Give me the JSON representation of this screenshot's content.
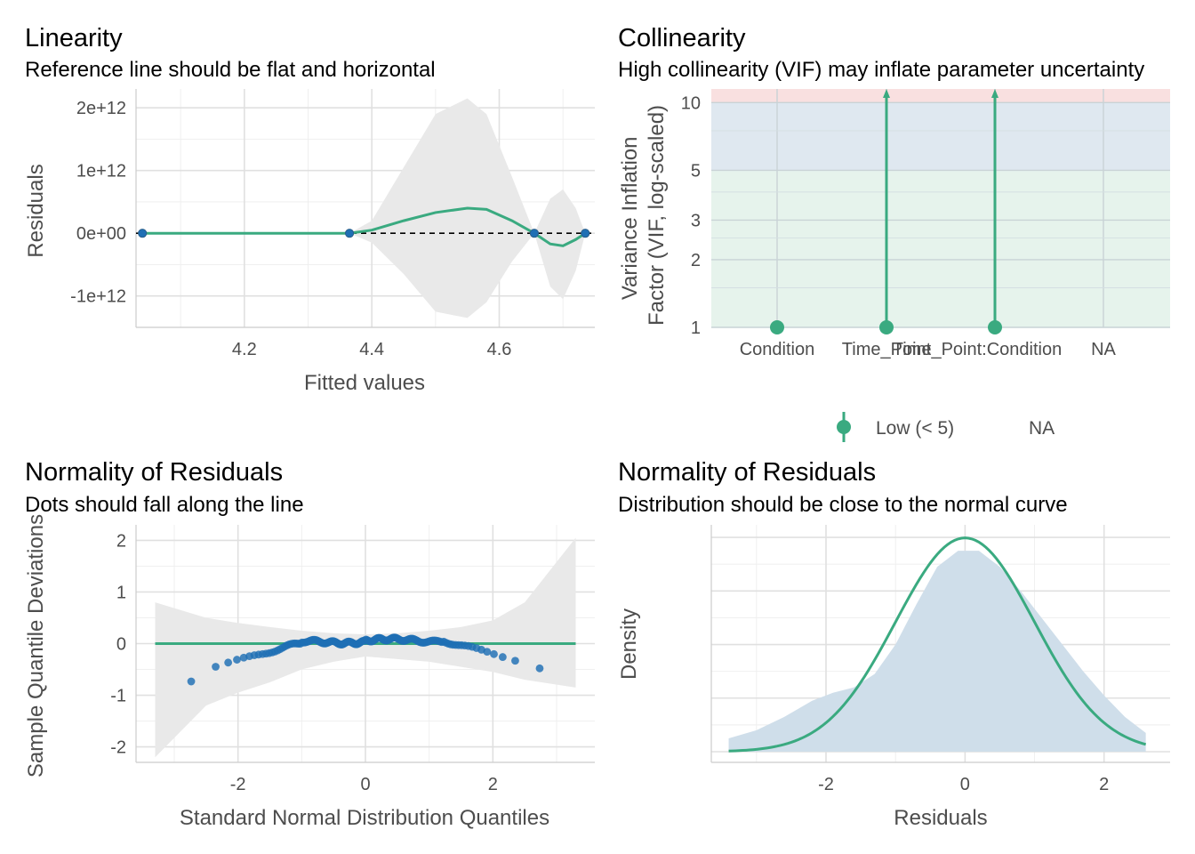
{
  "colors": {
    "accent_green": "#3aaa80",
    "point_blue": "#1f6fb4",
    "band_gray": "#e9e9e9",
    "zone_low": "#e6f3ec",
    "zone_moderate": "#dfe8f0",
    "zone_high": "#f9e0e0",
    "density_fill": "#cfdeea"
  },
  "chart_data": [
    {
      "id": "linearity",
      "type": "scatter",
      "title": "Linearity",
      "subtitle": "Reference line should be flat and horizontal",
      "xlabel": "Fitted values",
      "ylabel": "Residuals",
      "xlim": [
        4.03,
        4.75
      ],
      "ylim": [
        -1500000000000.0,
        2300000000000.0
      ],
      "x_ticks": [
        4.2,
        4.4,
        4.6
      ],
      "x_tick_labels": [
        "4.2",
        "4.4",
        "4.6"
      ],
      "y_ticks": [
        -1000000000000.0,
        0,
        1000000000000.0,
        2000000000000.0
      ],
      "y_tick_labels": [
        "-1e+12",
        "0e+00",
        "1e+12",
        "2e+12"
      ],
      "reference_line_y": 0,
      "points": [
        {
          "x": 4.04,
          "y": 0
        },
        {
          "x": 4.365,
          "y": 0
        },
        {
          "x": 4.655,
          "y": 0
        },
        {
          "x": 4.735,
          "y": 0
        }
      ],
      "smooth": {
        "x": [
          4.04,
          4.365,
          4.4,
          4.45,
          4.5,
          4.55,
          4.58,
          4.62,
          4.655,
          4.68,
          4.7,
          4.72,
          4.735
        ],
        "y": [
          0,
          0,
          50000000000.0,
          200000000000.0,
          330000000000.0,
          400000000000.0,
          380000000000.0,
          200000000000.0,
          0,
          -170000000000.0,
          -200000000000.0,
          -100000000000.0,
          0
        ],
        "upper": [
          0,
          0,
          200000000000.0,
          1050000000000.0,
          1900000000000.0,
          2150000000000.0,
          1900000000000.0,
          900000000000.0,
          0,
          550000000000.0,
          700000000000.0,
          400000000000.0,
          0
        ],
        "lower": [
          0,
          0,
          -150000000000.0,
          -650000000000.0,
          -1250000000000.0,
          -1350000000000.0,
          -1100000000000.0,
          -450000000000.0,
          0,
          -850000000000.0,
          -1050000000000.0,
          -600000000000.0,
          0
        ]
      }
    },
    {
      "id": "collinearity",
      "type": "scatter",
      "title": "Collinearity",
      "subtitle": "High collinearity (VIF) may inflate parameter uncertainty",
      "xlabel": "",
      "ylabel": "Variance Inflation\nFactor (VIF, log-scaled)",
      "y_scale": "log",
      "ylim": [
        1,
        11.5
      ],
      "y_ticks": [
        1,
        2,
        3,
        5,
        10
      ],
      "y_tick_labels": [
        "1",
        "2",
        "3",
        "5",
        "10"
      ],
      "categories": [
        "Condition",
        "Time_Point",
        "Time_Point:Condition",
        "NA"
      ],
      "vif": [
        1,
        1,
        1,
        null
      ],
      "ci_upper_off_scale": [
        false,
        true,
        true,
        false
      ],
      "zones": [
        {
          "from": 1,
          "to": 5,
          "color": "#e6f3ec"
        },
        {
          "from": 5,
          "to": 10,
          "color": "#dfe8f0"
        },
        {
          "from": 10,
          "to": 11.5,
          "color": "#f9e0e0"
        }
      ],
      "legend": [
        "Low (< 5)",
        "NA"
      ],
      "legend_position": "bottom"
    },
    {
      "id": "qq",
      "type": "scatter",
      "title": "Normality of Residuals",
      "subtitle": "Dots should fall along the line",
      "xlabel": "Standard Normal Distribution Quantiles",
      "ylabel": "Sample Quantile Deviations",
      "xlim": [
        -3.6,
        3.6
      ],
      "ylim": [
        -2.3,
        2.3
      ],
      "x_ticks": [
        -2,
        0,
        2
      ],
      "x_tick_labels": [
        "-2",
        "0",
        "2"
      ],
      "y_ticks": [
        -2,
        -1,
        0,
        1,
        2
      ],
      "y_tick_labels": [
        "-2",
        "-1",
        "0",
        "1",
        "2"
      ],
      "reference_line_y": 0,
      "band": {
        "x": [
          -3.3,
          -2.5,
          -2.0,
          -1.5,
          -1.0,
          -0.5,
          0,
          0.5,
          1.0,
          1.5,
          2.0,
          2.5,
          3.3
        ],
        "upper": [
          0.8,
          0.5,
          0.4,
          0.32,
          0.25,
          0.2,
          0.18,
          0.2,
          0.25,
          0.32,
          0.45,
          0.8,
          2.05
        ],
        "lower": [
          -2.2,
          -1.2,
          -0.95,
          -0.75,
          -0.5,
          -0.35,
          -0.25,
          -0.3,
          -0.35,
          -0.45,
          -0.55,
          -0.7,
          -0.85
        ]
      }
    },
    {
      "id": "density",
      "type": "area",
      "title": "Normality of Residuals",
      "subtitle": "Distribution should be close to the normal curve",
      "xlabel": "Residuals",
      "ylabel": "Density",
      "xlim": [
        -3.65,
        2.95
      ],
      "ylim": [
        0,
        0.42
      ],
      "x_ticks": [
        -2,
        0,
        2
      ],
      "x_tick_labels": [
        "-2",
        "0",
        "2"
      ],
      "empirical": {
        "x": [
          -3.4,
          -3.0,
          -2.6,
          -2.2,
          -1.9,
          -1.6,
          -1.3,
          -1.0,
          -0.7,
          -0.4,
          -0.1,
          0.2,
          0.5,
          0.8,
          1.1,
          1.4,
          1.7,
          2.0,
          2.3,
          2.6
        ],
        "y": [
          0.025,
          0.04,
          0.065,
          0.095,
          0.11,
          0.12,
          0.145,
          0.2,
          0.275,
          0.345,
          0.375,
          0.375,
          0.345,
          0.3,
          0.25,
          0.2,
          0.15,
          0.105,
          0.065,
          0.035
        ]
      },
      "normal_curve": {
        "mean": 0,
        "sd": 1
      }
    }
  ]
}
